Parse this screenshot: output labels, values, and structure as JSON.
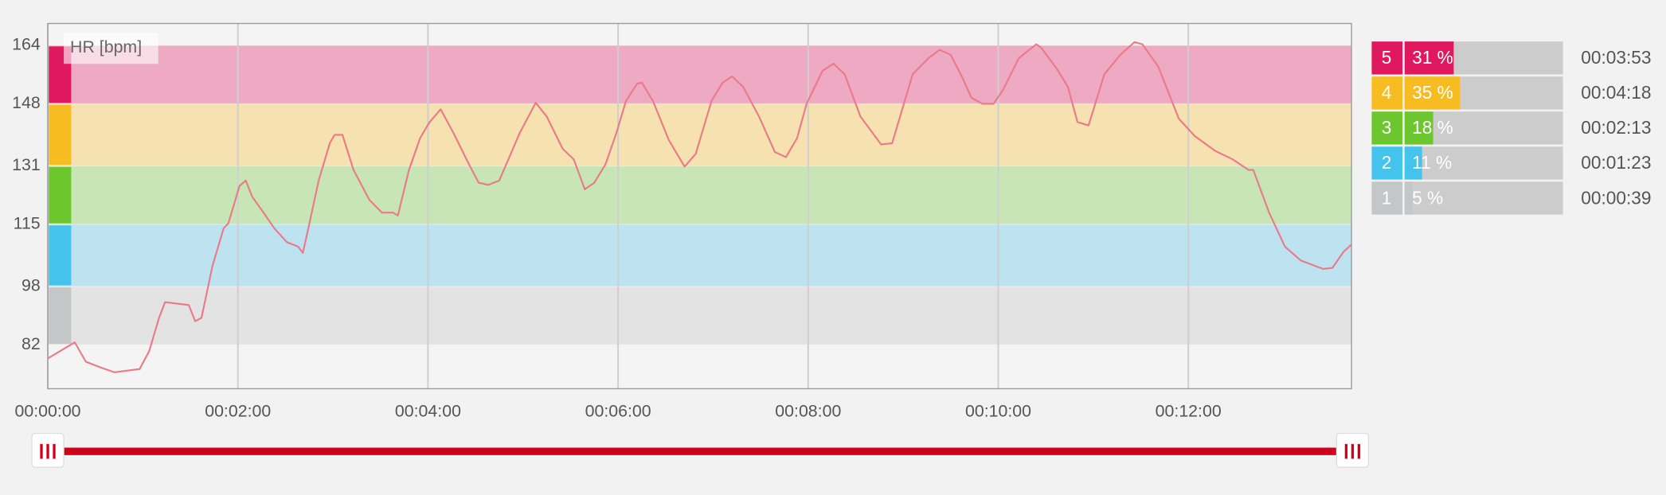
{
  "chart_data": {
    "type": "line",
    "xlim": [
      0,
      823
    ],
    "ylim": [
      70,
      170
    ],
    "xticks": [
      {
        "value": 0,
        "label": "00:00:00"
      },
      {
        "value": 120,
        "label": "00:02:00"
      },
      {
        "value": 240,
        "label": "00:04:00"
      },
      {
        "value": 360,
        "label": "00:06:00"
      },
      {
        "value": 480,
        "label": "00:08:00"
      },
      {
        "value": 600,
        "label": "00:10:00"
      },
      {
        "value": 720,
        "label": "00:12:00"
      }
    ],
    "yticks": [
      164,
      148,
      131,
      115,
      98,
      82
    ],
    "grid": true,
    "series": [
      {
        "name": "HR [bpm]",
        "color": "#ea7a89",
        "x": [
          0,
          17,
          24,
          34,
          42,
          58,
          64,
          70,
          74,
          89,
          93,
          97,
          104,
          111,
          114,
          121,
          125,
          129,
          137,
          143,
          151,
          158,
          161,
          164,
          171,
          178,
          181,
          186,
          193,
          203,
          211,
          218,
          221,
          228,
          235,
          241,
          248,
          256,
          265,
          272,
          278,
          285,
          298,
          308,
          315,
          325,
          332,
          339,
          345,
          352,
          359,
          365,
          372,
          375,
          382,
          392,
          402,
          409,
          419,
          426,
          432,
          439,
          449,
          459,
          466,
          473,
          479,
          489,
          496,
          503,
          513,
          526,
          533,
          540,
          546,
          556,
          563,
          570,
          577,
          583,
          590,
          597,
          603,
          613,
          624,
          627,
          637,
          644,
          650,
          657,
          667,
          677,
          686,
          691,
          701,
          714,
          724,
          737,
          748,
          758,
          761,
          771,
          781,
          791,
          805,
          811,
          818,
          823
        ],
        "values": [
          78.3,
          82.7,
          77.4,
          75.7,
          74.5,
          75.4,
          80.3,
          89.1,
          93.7,
          92.9,
          88.5,
          89.4,
          103.7,
          113.9,
          115.3,
          125.5,
          127,
          122.6,
          117.7,
          113.9,
          110.1,
          108.9,
          107.2,
          113,
          127,
          137.2,
          139.5,
          139.5,
          129.9,
          121.7,
          118.2,
          118.2,
          117.4,
          129.9,
          138.6,
          143,
          146.5,
          140.1,
          132.2,
          126.4,
          125.8,
          127,
          140.1,
          148.3,
          144.5,
          135.7,
          132.8,
          124.6,
          126.4,
          131.4,
          140.1,
          148.8,
          153.5,
          153.8,
          148.8,
          138.1,
          130.8,
          134.3,
          148.8,
          153.8,
          155.5,
          152.6,
          144.5,
          134.8,
          133.4,
          138.6,
          148,
          157,
          159,
          156.1,
          144.5,
          136.9,
          137.2,
          147.4,
          156.1,
          160.5,
          162.8,
          161.4,
          155.5,
          149.7,
          148,
          148,
          151.8,
          160.5,
          164.3,
          163.4,
          157.6,
          152.6,
          143,
          142.1,
          156.1,
          161.4,
          164.9,
          164.3,
          158.2,
          143.9,
          139.2,
          135.1,
          132.8,
          129.9,
          129.9,
          118.2,
          108.9,
          105.1,
          102.8,
          103.1,
          107.5,
          109.5
        ]
      }
    ],
    "zones": [
      {
        "name": "5",
        "lower": 148,
        "upper": 164,
        "color": "#e0185f",
        "band_color": "#edaac2",
        "percent": 31,
        "percent_label": "31 %",
        "duration": "00:03:53"
      },
      {
        "name": "4",
        "lower": 131,
        "upper": 148,
        "color": "#f7bc22",
        "band_color": "#f5e2b0",
        "percent": 35,
        "percent_label": "35 %",
        "duration": "00:04:18"
      },
      {
        "name": "3",
        "lower": 115,
        "upper": 131,
        "color": "#6cc72e",
        "band_color": "#c8e6b5",
        "percent": 18,
        "percent_label": "18 %",
        "duration": "00:02:13"
      },
      {
        "name": "2",
        "lower": 98,
        "upper": 115,
        "color": "#44c3ec",
        "band_color": "#bde3f1",
        "percent": 11,
        "percent_label": "11 %",
        "duration": "00:01:23"
      },
      {
        "name": "1",
        "lower": 82,
        "upper": 98,
        "color": "#c3c7c7",
        "band_color": "#e2e3e2",
        "percent": 5,
        "percent_label": "5 %",
        "duration": "00:00:39"
      }
    ]
  }
}
